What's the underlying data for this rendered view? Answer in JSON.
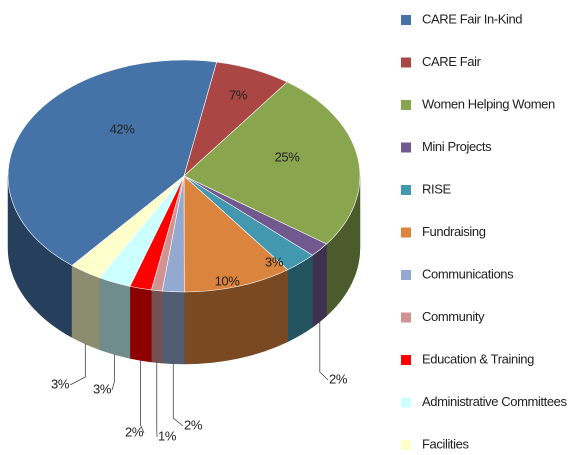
{
  "chart_data": {
    "type": "pie3d",
    "categories": [
      "CARE Fair In-Kind",
      "CARE Fair",
      "Women Helping Women",
      "Mini Projects",
      "RISE",
      "Fundraising",
      "Communications",
      "Community",
      "Education & Training",
      "Administrative Committees",
      "Facilities"
    ],
    "values": [
      42,
      7,
      25,
      2,
      3,
      10,
      2,
      1,
      2,
      3,
      3
    ],
    "value_labels": [
      "42%",
      "7%",
      "25%",
      "2%",
      "3%",
      "10%",
      "2%",
      "1%",
      "2%",
      "3%",
      "3%"
    ],
    "colors": [
      "#4572a7",
      "#aa4643",
      "#89a54e",
      "#71588f",
      "#4198af",
      "#db843d",
      "#93a9cf",
      "#d19392",
      "#ff0000",
      "#ccffff",
      "#ffffcc"
    ],
    "legend": "right"
  }
}
